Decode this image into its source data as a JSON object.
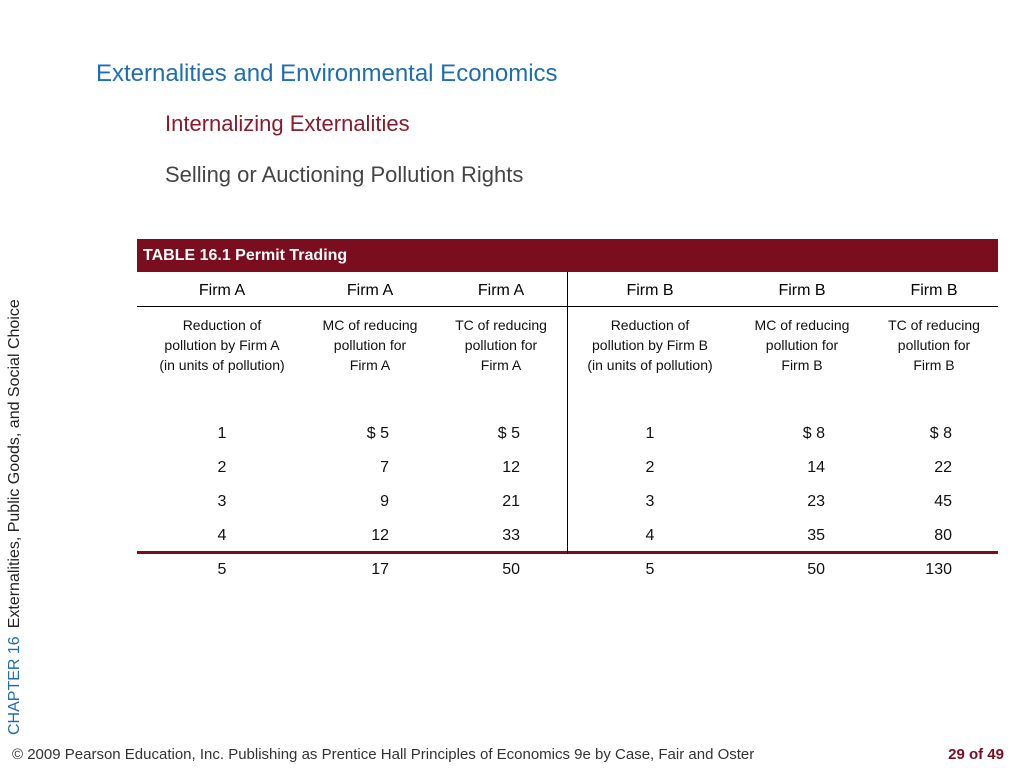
{
  "slide": {
    "title": "Externalities and Environmental Economics",
    "subtitle": "Internalizing Externalities",
    "subheading": "Selling or Auctioning Pollution Rights"
  },
  "sidebar": {
    "chapter": "CHAPTER 16",
    "chapter_title": "Externalities, Public Goods, and Social Choice"
  },
  "table": {
    "caption": "TABLE 16.1  Permit Trading",
    "firm_headers": [
      "Firm A",
      "Firm A",
      "Firm A",
      "Firm B",
      "Firm B",
      "Firm B"
    ],
    "col_subheaders": [
      [
        "Reduction of",
        "pollution by Firm A",
        "(in units of pollution)"
      ],
      [
        "MC of reducing",
        "pollution for",
        "Firm A"
      ],
      [
        "TC of reducing",
        "pollution for",
        "Firm A"
      ],
      [
        "Reduction of",
        "pollution by Firm B",
        "(in units of pollution)"
      ],
      [
        "MC of reducing",
        "pollution for",
        "Firm B"
      ],
      [
        "TC of reducing",
        "pollution for",
        "Firm B"
      ]
    ],
    "rows": [
      [
        "1",
        "$   5",
        "$   5",
        "1",
        "$   8",
        "$    8"
      ],
      [
        "2",
        "7",
        "12",
        "2",
        "14",
        "22"
      ],
      [
        "3",
        "9",
        "21",
        "3",
        "23",
        "45"
      ],
      [
        "4",
        "12",
        "33",
        "4",
        "35",
        "80"
      ],
      [
        "5",
        "17",
        "50",
        "5",
        "50",
        "130"
      ]
    ]
  },
  "footer": {
    "copyright": "© 2009 Pearson Education, Inc. Publishing as Prentice Hall   Principles of Economics 9e by Case, Fair and Oster",
    "page": "29 of 49"
  },
  "colors": {
    "title_blue": "#1f6db3",
    "accent_maroon": "#7a0e1e",
    "subtitle_red": "#8b1a2b"
  }
}
